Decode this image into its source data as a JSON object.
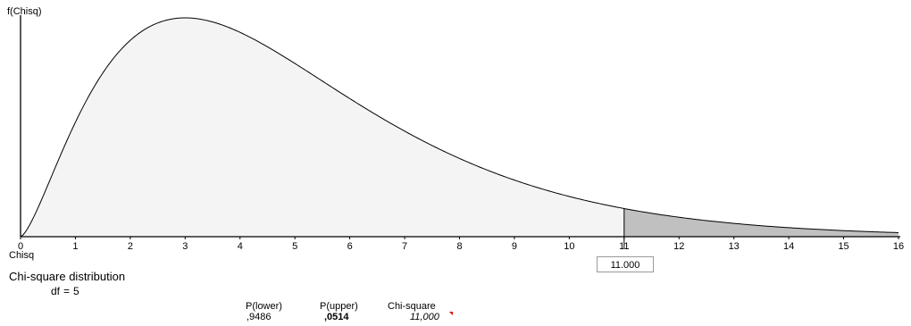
{
  "chart_data": {
    "type": "area",
    "distribution": "Chi-square",
    "df": 5,
    "ylabel": "f(Chisq)",
    "xlabel": "Chisq",
    "xlim": [
      0,
      16
    ],
    "x_ticks": [
      0,
      1,
      2,
      3,
      4,
      5,
      6,
      7,
      8,
      9,
      10,
      11,
      12,
      13,
      14,
      15,
      16
    ],
    "critical_value": 11.0,
    "critical_value_label": "11.000",
    "shaded_region": "upper",
    "colors": {
      "lower_fill": "#f4f4f4",
      "upper_fill": "#c0c0c0",
      "curve": "#000000",
      "flag": "#d40000"
    }
  },
  "caption": {
    "title": "Chi-square distribution",
    "df_label": "df",
    "df_eq": "=",
    "df_value": "5"
  },
  "results": {
    "lower_label": "P(lower)",
    "lower_value": ",9486",
    "upper_label": "P(upper)",
    "upper_value": ",0514",
    "chi_label": "Chi-square",
    "chi_value": "11,000"
  }
}
